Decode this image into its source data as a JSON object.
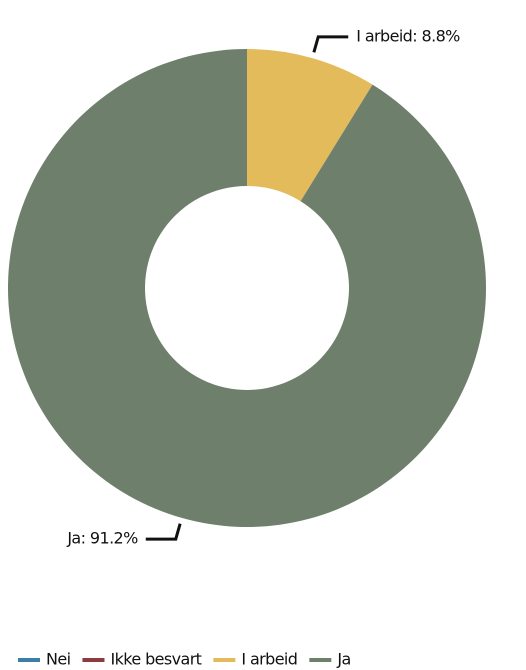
{
  "chart_data": {
    "type": "donut",
    "series": [
      {
        "name": "Nei",
        "color": "#3b7ea8",
        "values": [
          0
        ]
      },
      {
        "name": "Ikke besvart",
        "color": "#8c3b3e",
        "values": [
          0
        ]
      },
      {
        "name": "I arbeid",
        "color": "#e4bb5b",
        "values": [
          8.8
        ]
      },
      {
        "name": "Ja",
        "color": "#6e806c",
        "values": [
          91.2
        ]
      }
    ],
    "value_labels": [
      null,
      null,
      "I arbeid: 8.8%",
      "Ja: 91.2%"
    ],
    "legend": "bottom"
  }
}
